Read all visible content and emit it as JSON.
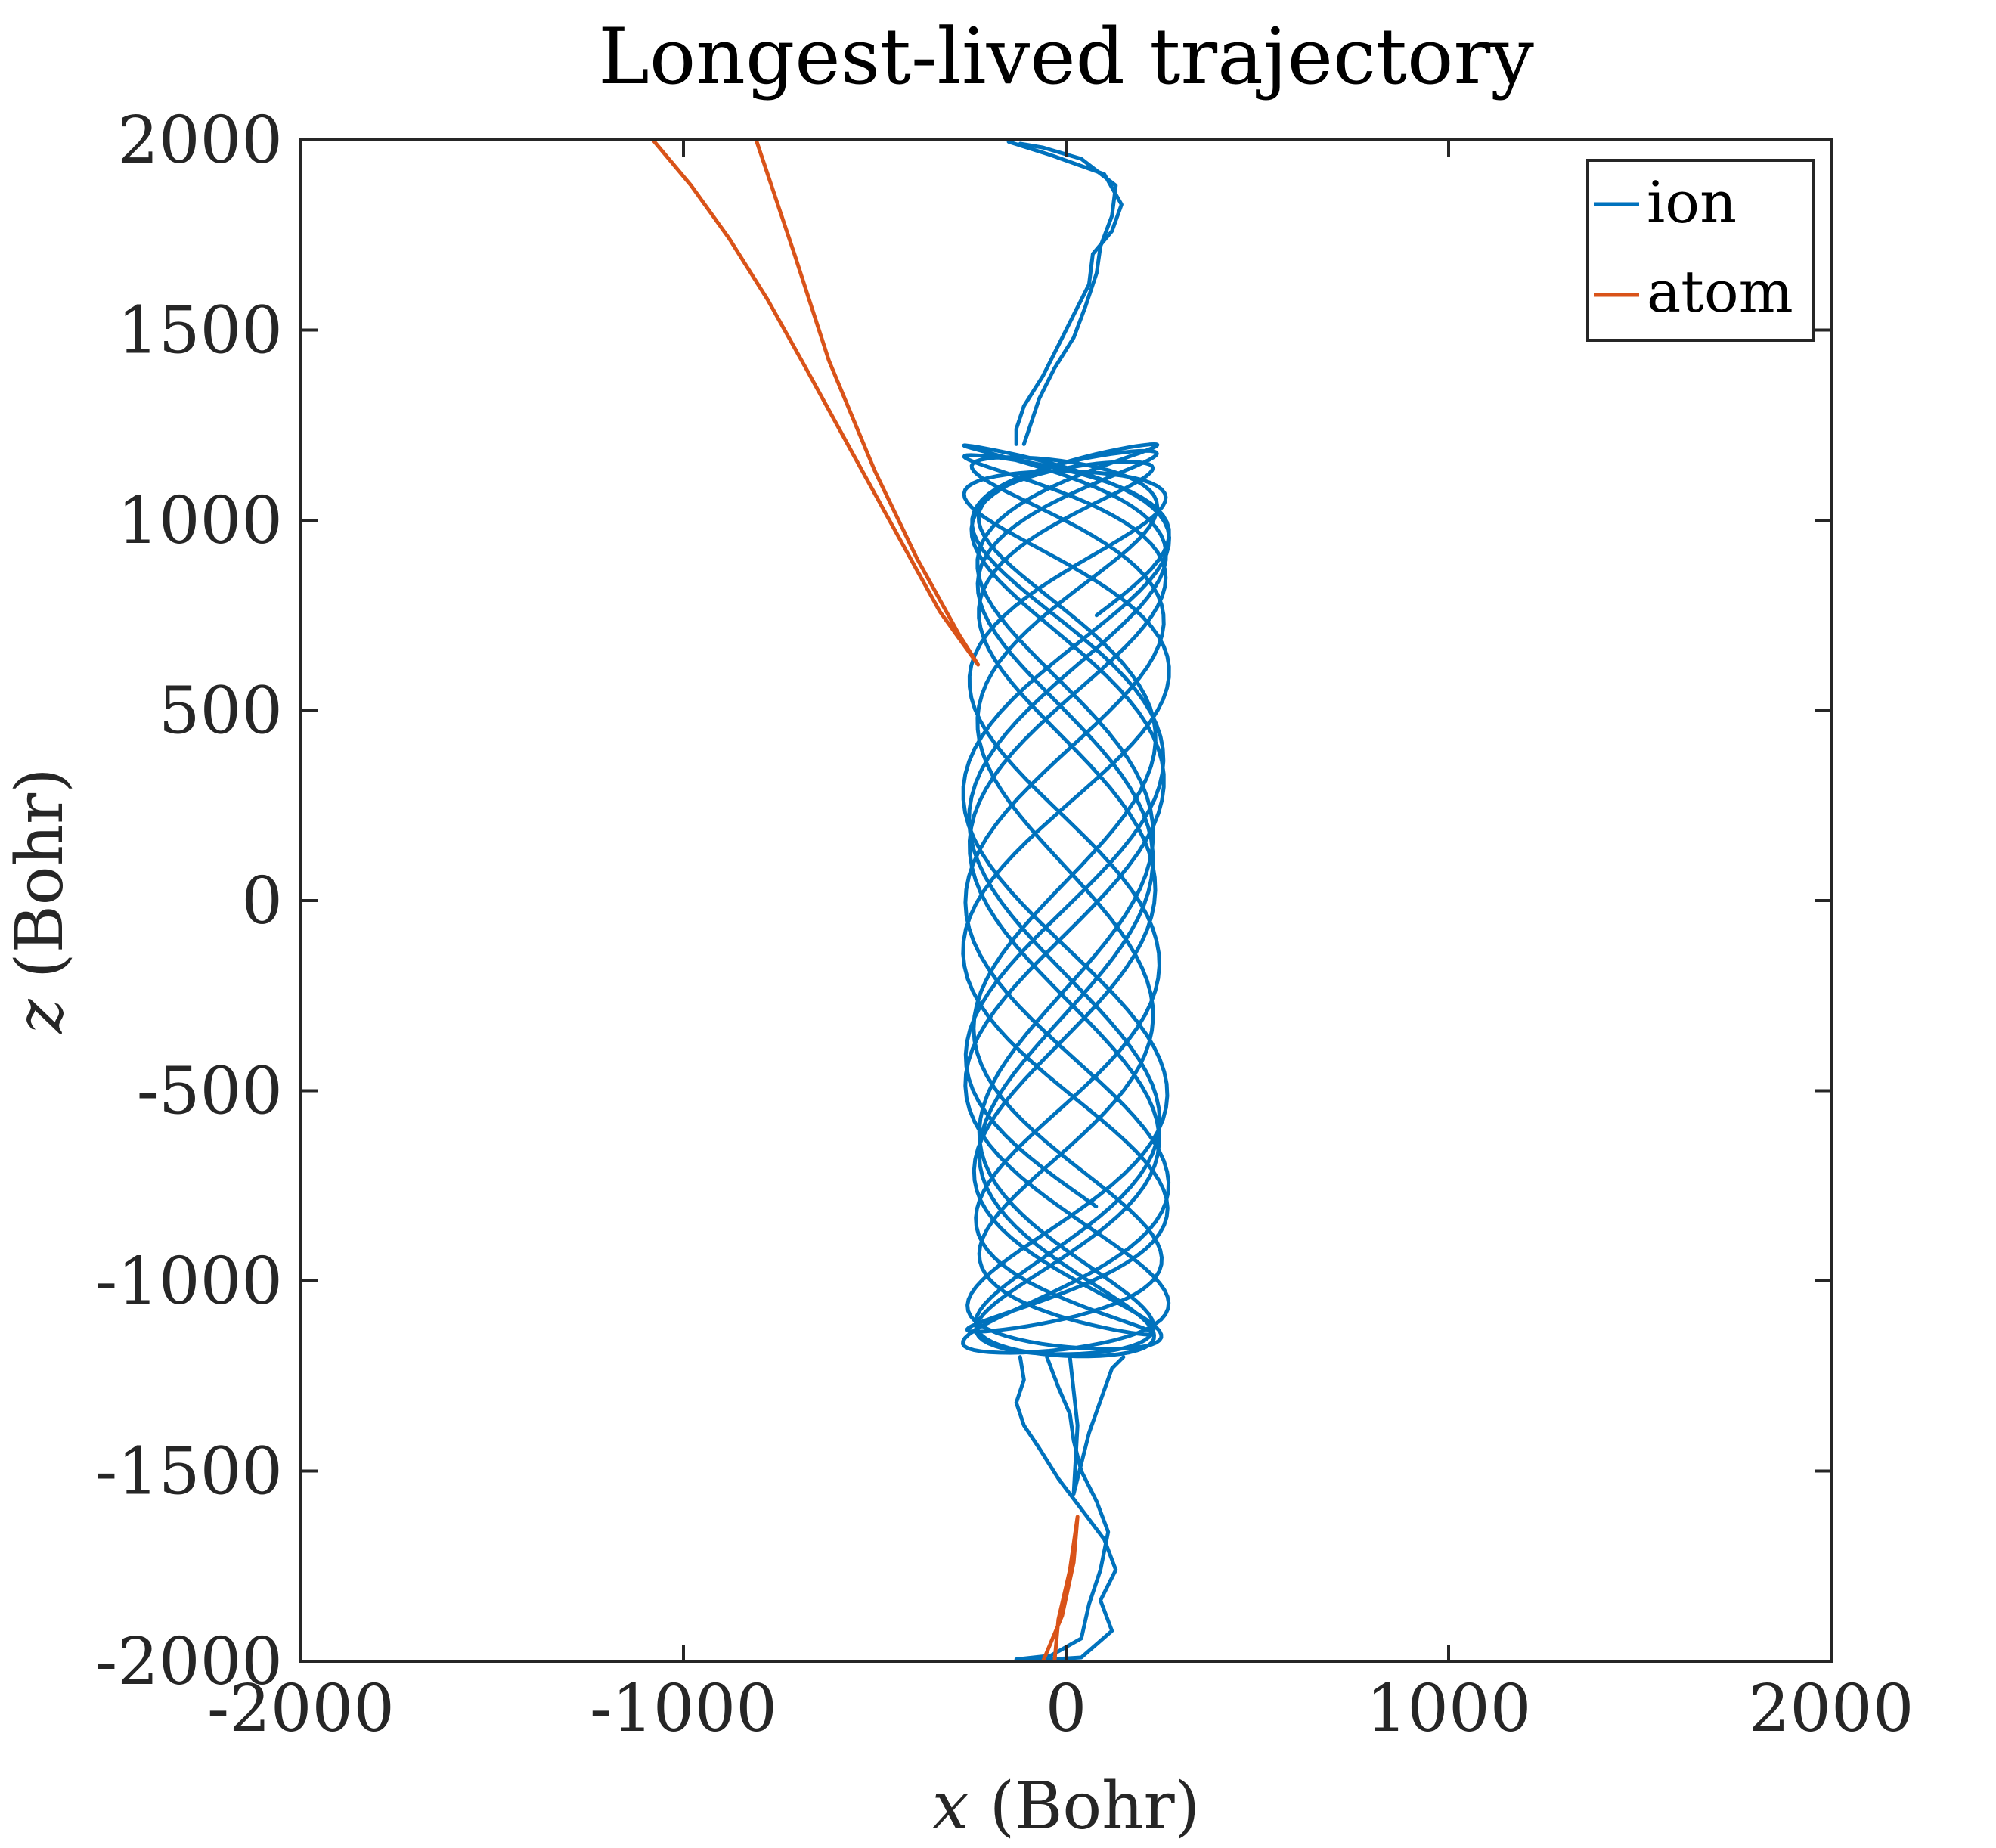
{
  "chart_data": {
    "type": "line",
    "title": "Longest-lived trajectory",
    "xlabel_var": "x",
    "xlabel_unit": "(Bohr)",
    "ylabel_var": "z",
    "ylabel_unit": "(Bohr)",
    "xlim": [
      -2000,
      2000
    ],
    "ylim": [
      -2000,
      2000
    ],
    "xticks": [
      -2000,
      -1000,
      0,
      1000,
      2000
    ],
    "yticks": [
      -2000,
      -1500,
      -1000,
      -500,
      0,
      500,
      1000,
      1500,
      2000
    ],
    "xtick_labels": [
      "-2000",
      "-1000",
      "0",
      "1000",
      "2000"
    ],
    "ytick_labels": [
      "-2000",
      "-1500",
      "-1000",
      "-500",
      "0",
      "500",
      "1000",
      "1500",
      "2000"
    ],
    "grid": false,
    "legend_position": "top-right",
    "series": [
      {
        "name": "ion",
        "color": "#0072BD",
        "trap_region": {
          "x_range": [
            -270,
            270
          ],
          "z_range": [
            -1200,
            1200
          ],
          "dense_oscillation": true
        },
        "entry_path_upper": [
          [
            -120,
            1990
          ],
          [
            -60,
            1980
          ],
          [
            40,
            1950
          ],
          [
            130,
            1880
          ],
          [
            120,
            1800
          ],
          [
            90,
            1720
          ],
          [
            80,
            1650
          ],
          [
            50,
            1560
          ],
          [
            20,
            1480
          ],
          [
            -30,
            1400
          ],
          [
            -70,
            1320
          ],
          [
            -90,
            1260
          ],
          [
            -110,
            1200
          ]
        ],
        "entry_path_upper_2": [
          [
            -150,
            1995
          ],
          [
            -40,
            1960
          ],
          [
            100,
            1910
          ],
          [
            145,
            1830
          ],
          [
            120,
            1760
          ],
          [
            70,
            1700
          ],
          [
            60,
            1620
          ],
          [
            20,
            1540
          ],
          [
            -20,
            1460
          ],
          [
            -60,
            1380
          ],
          [
            -110,
            1300
          ],
          [
            -130,
            1240
          ],
          [
            -130,
            1200
          ]
        ],
        "exit_path_lower": [
          [
            -120,
            -1200
          ],
          [
            -110,
            -1260
          ],
          [
            -130,
            -1320
          ],
          [
            -110,
            -1380
          ],
          [
            -70,
            -1440
          ],
          [
            -20,
            -1520
          ],
          [
            40,
            -1600
          ],
          [
            100,
            -1680
          ],
          [
            130,
            -1760
          ],
          [
            90,
            -1840
          ],
          [
            120,
            -1920
          ],
          [
            40,
            -1990
          ],
          [
            -120,
            -2000
          ]
        ],
        "exit_path_lower_2": [
          [
            -50,
            -1200
          ],
          [
            -20,
            -1280
          ],
          [
            10,
            -1350
          ],
          [
            20,
            -1420
          ],
          [
            40,
            -1500
          ],
          [
            80,
            -1580
          ],
          [
            110,
            -1660
          ],
          [
            90,
            -1760
          ],
          [
            60,
            -1850
          ],
          [
            40,
            -1940
          ],
          [
            -40,
            -1985
          ],
          [
            -130,
            -1995
          ]
        ],
        "exit_branch": [
          [
            10,
            -1200
          ],
          [
            30,
            -1380
          ],
          [
            20,
            -1560
          ],
          [
            60,
            -1400
          ],
          [
            120,
            -1230
          ],
          [
            150,
            -1200
          ]
        ]
      },
      {
        "name": "atom",
        "color": "#D95319",
        "upper_path": [
          [
            -1080,
            2000
          ],
          [
            -980,
            1880
          ],
          [
            -880,
            1740
          ],
          [
            -780,
            1580
          ],
          [
            -680,
            1400
          ],
          [
            -560,
            1180
          ],
          [
            -440,
            960
          ],
          [
            -330,
            760
          ],
          [
            -230,
            620
          ],
          [
            -280,
            700
          ],
          [
            -390,
            900
          ],
          [
            -500,
            1130
          ],
          [
            -620,
            1420
          ],
          [
            -710,
            1700
          ],
          [
            -810,
            2000
          ]
        ],
        "lower_path": [
          [
            -60,
            -2000
          ],
          [
            -10,
            -1880
          ],
          [
            20,
            -1740
          ],
          [
            30,
            -1620
          ],
          [
            10,
            -1760
          ],
          [
            -20,
            -1890
          ],
          [
            -30,
            -2000
          ]
        ]
      }
    ]
  }
}
